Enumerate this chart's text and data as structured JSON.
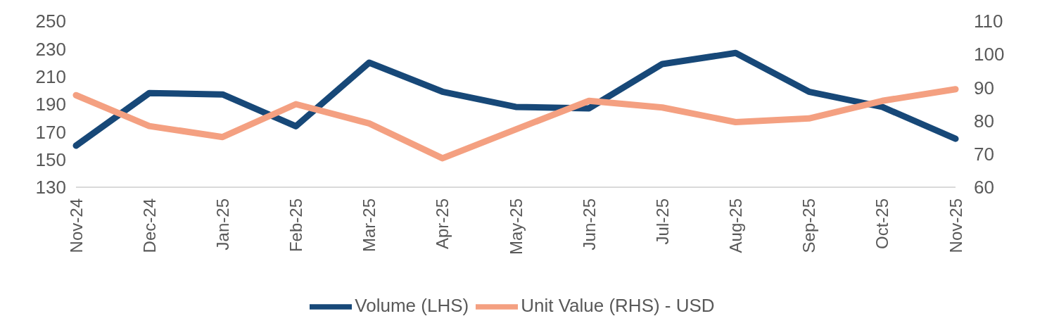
{
  "chart_data": {
    "type": "line",
    "categories": [
      "Nov-24",
      "Dec-24",
      "Jan-25",
      "Feb-25",
      "Mar-25",
      "Apr-25",
      "May-25",
      "Jun-25",
      "Jul-25",
      "Aug-25",
      "Sep-25",
      "Oct-25",
      "Nov-25"
    ],
    "series": [
      {
        "name": "Volume (LHS)",
        "color": "#174878",
        "values": [
          160,
          198,
          197,
          174,
          220,
          199,
          188,
          187,
          219,
          227,
          199,
          188,
          165
        ]
      },
      {
        "name": "Unit Value (RHS) - USD",
        "color": "#f4a081",
        "axis": "y2",
        "values": [
          87.7,
          78.4,
          75.1,
          85,
          79.2,
          68.7,
          77.4,
          86,
          84,
          79.6,
          80.7,
          86,
          89.5
        ]
      }
    ],
    "ylim": [
      130,
      250
    ],
    "yticks": [
      130,
      150,
      170,
      190,
      210,
      230,
      250
    ],
    "y2lim": [
      60,
      110
    ],
    "y2ticks": [
      60,
      70,
      80,
      90,
      100,
      110
    ],
    "legend": "bottom",
    "marker": "none",
    "line_style": "solid"
  }
}
